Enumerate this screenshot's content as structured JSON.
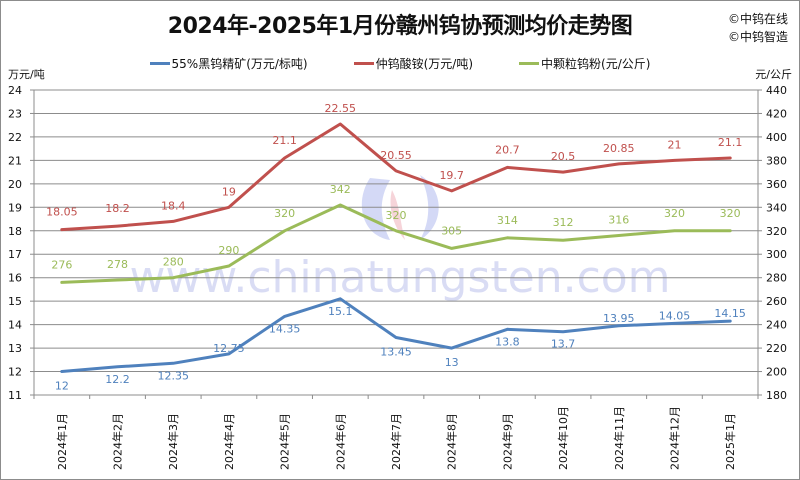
{
  "title": "2024年-2025年1月份赣州钨协预测均价走势图",
  "brand": [
    "©中钨在线",
    "©中钨智造"
  ],
  "watermark": "www.chinatungsten.com",
  "units": {
    "left": "万元/吨",
    "right": "元/公斤"
  },
  "legend": [
    {
      "label": "55%黑钨精矿(万元/标吨)",
      "color": "#4f81bd"
    },
    {
      "label": "仲钨酸铵(万元/吨)",
      "color": "#c0504d"
    },
    {
      "label": "中颗粒钨粉(元/公斤)",
      "color": "#9bbb59"
    }
  ],
  "chart_data": {
    "type": "line",
    "title": "2024年-2025年1月份赣州钨协预测均价走势图",
    "categories": [
      "2024年1月",
      "2024年2月",
      "2024年3月",
      "2024年4月",
      "2024年5月",
      "2024年6月",
      "2024年7月",
      "2024年8月",
      "2024年9月",
      "2024年10月",
      "2024年11月",
      "2024年12月",
      "2025年1月"
    ],
    "series": [
      {
        "name": "55%黑钨精矿(万元/标吨)",
        "axis": "left",
        "color": "#4f81bd",
        "values": [
          12,
          12.2,
          12.35,
          12.75,
          14.35,
          15.1,
          13.45,
          13,
          13.8,
          13.7,
          13.95,
          14.05,
          14.15
        ]
      },
      {
        "name": "仲钨酸铵(万元/吨)",
        "axis": "left",
        "color": "#c0504d",
        "values": [
          18.05,
          18.2,
          18.4,
          19,
          21.1,
          22.55,
          20.55,
          19.7,
          20.7,
          20.5,
          20.85,
          21,
          21.1
        ]
      },
      {
        "name": "中颗粒钨粉(元/公斤)",
        "axis": "right",
        "color": "#9bbb59",
        "values": [
          276,
          278,
          280,
          290,
          320,
          342,
          320,
          305,
          314,
          312,
          316,
          320,
          320
        ]
      }
    ],
    "ylabel_left": "万元/吨",
    "ylabel_right": "元/公斤",
    "ylim_left": [
      11,
      24
    ],
    "ylim_right": [
      180,
      440
    ],
    "yticks_left": [
      11,
      12,
      13,
      14,
      15,
      16,
      17,
      18,
      19,
      20,
      21,
      22,
      23,
      24
    ],
    "yticks_right": [
      180,
      200,
      220,
      240,
      260,
      280,
      300,
      320,
      340,
      360,
      380,
      400,
      420,
      440
    ],
    "grid": true,
    "legend_position": "top"
  }
}
